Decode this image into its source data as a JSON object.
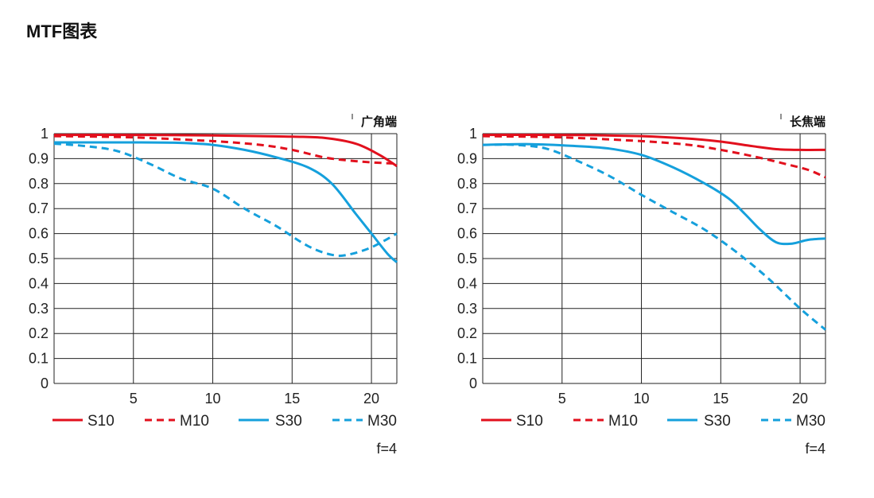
{
  "page": {
    "title": "MTF图表"
  },
  "colors": {
    "red": "#e2101d",
    "blue": "#15a0dc",
    "grid": "#222222"
  },
  "chart_data": [
    {
      "type": "line",
      "corner_label": "广角端",
      "note": "f=4",
      "xlim": [
        0,
        21.6
      ],
      "ylim": [
        0,
        1
      ],
      "x_ticks": [
        5,
        10,
        15,
        20
      ],
      "y_ticks": [
        0,
        0.1,
        0.2,
        0.3,
        0.4,
        0.5,
        0.6,
        0.7,
        0.8,
        0.9,
        1
      ],
      "y_tick_labels": [
        "0",
        "0.1",
        "0.2",
        "0.3",
        "0.4",
        "0.5",
        "0.6",
        "0.7",
        "0.8",
        "0.9",
        "1"
      ],
      "legend": [
        "S10",
        "M10",
        "S30",
        "M30"
      ],
      "grid": true,
      "series": [
        {
          "name": "S10",
          "color": "red",
          "style": "solid",
          "points": [
            [
              0,
              0.995
            ],
            [
              5,
              0.995
            ],
            [
              10,
              0.993
            ],
            [
              13,
              0.99
            ],
            [
              15,
              0.988
            ],
            [
              17,
              0.983
            ],
            [
              19,
              0.96
            ],
            [
              20.5,
              0.915
            ],
            [
              21.6,
              0.87
            ]
          ]
        },
        {
          "name": "M10",
          "color": "red",
          "style": "dashed",
          "points": [
            [
              0,
              0.99
            ],
            [
              5,
              0.985
            ],
            [
              10,
              0.97
            ],
            [
              13,
              0.955
            ],
            [
              15,
              0.935
            ],
            [
              17,
              0.905
            ],
            [
              18.5,
              0.893
            ],
            [
              20,
              0.885
            ],
            [
              21.6,
              0.88
            ]
          ]
        },
        {
          "name": "S30",
          "color": "blue",
          "style": "solid",
          "points": [
            [
              0,
              0.965
            ],
            [
              5,
              0.965
            ],
            [
              8,
              0.963
            ],
            [
              10,
              0.955
            ],
            [
              12,
              0.935
            ],
            [
              14,
              0.905
            ],
            [
              16,
              0.865
            ],
            [
              17.5,
              0.8
            ],
            [
              19,
              0.68
            ],
            [
              20,
              0.6
            ],
            [
              21,
              0.52
            ],
            [
              21.6,
              0.485
            ]
          ]
        },
        {
          "name": "M30",
          "color": "blue",
          "style": "dashed",
          "points": [
            [
              0,
              0.96
            ],
            [
              2,
              0.95
            ],
            [
              4,
              0.93
            ],
            [
              6,
              0.88
            ],
            [
              8,
              0.82
            ],
            [
              10,
              0.78
            ],
            [
              12,
              0.7
            ],
            [
              14,
              0.63
            ],
            [
              16,
              0.55
            ],
            [
              17.5,
              0.515
            ],
            [
              18.5,
              0.515
            ],
            [
              20,
              0.545
            ],
            [
              21.6,
              0.6
            ]
          ]
        }
      ]
    },
    {
      "type": "line",
      "corner_label": "长焦端",
      "note": "f=4",
      "xlim": [
        0,
        21.6
      ],
      "ylim": [
        0,
        1
      ],
      "x_ticks": [
        5,
        10,
        15,
        20
      ],
      "y_ticks": [
        0,
        0.1,
        0.2,
        0.3,
        0.4,
        0.5,
        0.6,
        0.7,
        0.8,
        0.9,
        1
      ],
      "y_tick_labels": [
        "0",
        "0.1",
        "0.2",
        "0.3",
        "0.4",
        "0.5",
        "0.6",
        "0.7",
        "0.8",
        "0.9",
        "1"
      ],
      "legend": [
        "S10",
        "M10",
        "S30",
        "M30"
      ],
      "grid": true,
      "series": [
        {
          "name": "S10",
          "color": "red",
          "style": "solid",
          "points": [
            [
              0,
              0.995
            ],
            [
              5,
              0.995
            ],
            [
              10,
              0.99
            ],
            [
              13,
              0.98
            ],
            [
              15,
              0.968
            ],
            [
              17,
              0.95
            ],
            [
              18.5,
              0.938
            ],
            [
              20,
              0.935
            ],
            [
              21.6,
              0.935
            ]
          ]
        },
        {
          "name": "M10",
          "color": "red",
          "style": "dashed",
          "points": [
            [
              0,
              0.99
            ],
            [
              5,
              0.985
            ],
            [
              10,
              0.97
            ],
            [
              13,
              0.955
            ],
            [
              15,
              0.935
            ],
            [
              17,
              0.91
            ],
            [
              19,
              0.88
            ],
            [
              20.5,
              0.855
            ],
            [
              21.6,
              0.825
            ]
          ]
        },
        {
          "name": "S30",
          "color": "blue",
          "style": "solid",
          "points": [
            [
              0,
              0.955
            ],
            [
              3,
              0.958
            ],
            [
              6,
              0.95
            ],
            [
              8,
              0.94
            ],
            [
              10,
              0.915
            ],
            [
              12,
              0.865
            ],
            [
              14,
              0.8
            ],
            [
              15.5,
              0.74
            ],
            [
              16.5,
              0.68
            ],
            [
              17.5,
              0.615
            ],
            [
              18.5,
              0.565
            ],
            [
              19.5,
              0.56
            ],
            [
              20.5,
              0.575
            ],
            [
              21.6,
              0.58
            ]
          ]
        },
        {
          "name": "M30",
          "color": "blue",
          "style": "dashed",
          "points": [
            [
              0,
              0.955
            ],
            [
              2,
              0.955
            ],
            [
              4,
              0.94
            ],
            [
              6,
              0.89
            ],
            [
              8,
              0.83
            ],
            [
              10,
              0.755
            ],
            [
              12,
              0.685
            ],
            [
              14,
              0.615
            ],
            [
              16,
              0.525
            ],
            [
              18,
              0.42
            ],
            [
              20,
              0.3
            ],
            [
              21.6,
              0.215
            ]
          ]
        }
      ]
    }
  ]
}
